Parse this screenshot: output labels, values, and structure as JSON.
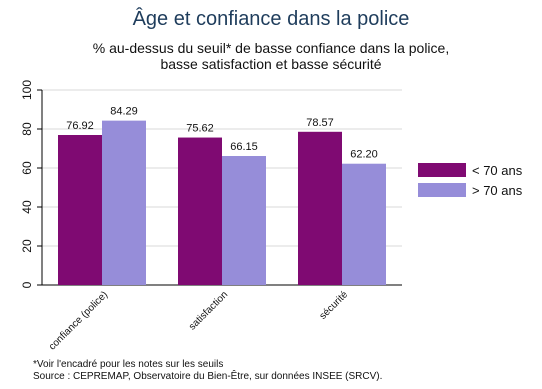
{
  "chart_data": {
    "type": "bar",
    "title": "Âge et confiance dans la police",
    "subtitle_lines": [
      "% au-dessus du seuil* de basse confiance dans la police,",
      "basse satisfaction et basse sécurité"
    ],
    "categories": [
      "confiance (police)",
      "satisfaction",
      "sécurité"
    ],
    "series": [
      {
        "name": "< 70 ans",
        "color": "#7f0a72",
        "values": [
          76.92,
          75.62,
          78.57
        ]
      },
      {
        "name": "> 70 ans",
        "color": "#968dd9",
        "values": [
          84.29,
          66.15,
          62.2
        ]
      }
    ],
    "value_labels": [
      [
        "76.92",
        "75.62",
        "78.57"
      ],
      [
        "84.29",
        "66.15",
        "62.20"
      ]
    ],
    "ylim": [
      0,
      100
    ],
    "yticks": [
      0,
      20,
      40,
      60,
      80,
      100
    ],
    "grid": true,
    "legend_position": "right"
  },
  "footnotes": {
    "note": "*Voir l'encadré pour les notes sur les seuils",
    "source": "Source : CEPREMAP, Observatoire du Bien-Être, sur données INSEE (SRCV)."
  }
}
